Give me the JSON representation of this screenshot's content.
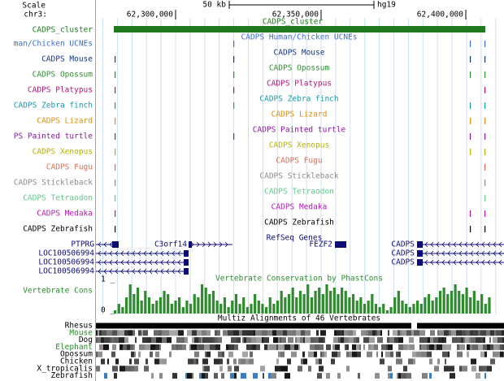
{
  "header": {
    "scale": "Scale",
    "chrom": "chr3:",
    "scale_bar": "50 kb",
    "assembly": "hg19",
    "positions": [
      "62,300,000",
      "62,350,000",
      "62,400,000"
    ]
  },
  "tracks": [
    {
      "label": "CADPS_cluster",
      "title": "CADPS_cluster",
      "color": "#1f7a1f"
    },
    {
      "label": "man/Chicken UCNEs",
      "title": "CADPS Human/Chicken UCNEs",
      "color": "#3d6fd0"
    },
    {
      "label": "CADPS Mouse",
      "title": "CADPS Mouse",
      "color": "#13338a"
    },
    {
      "label": "CADPS Opossum",
      "title": "CADPS Opossum",
      "color": "#2f8f2f"
    },
    {
      "label": "CADPS Platypus",
      "title": "CADPS Platypus",
      "color": "#b0177a"
    },
    {
      "label": "CADPS Zebra finch",
      "title": "CADPS Zebra finch",
      "color": "#1898ab"
    },
    {
      "label": "CADPS Lizard",
      "title": "CADPS Lizard",
      "color": "#dc8e0c"
    },
    {
      "label": "PS Painted turtle",
      "title": "CADPS Painted turtle",
      "color": "#8a16a6"
    },
    {
      "label": "CADPS Xenopus",
      "title": "CADPS Xenopus",
      "color": "#b5b000"
    },
    {
      "label": "CADPS Fugu",
      "title": "CADPS Fugu",
      "color": "#e06a50"
    },
    {
      "label": "CADPS Stickleback",
      "title": "CADPS Stickleback",
      "color": "#8a8a8a"
    },
    {
      "label": "CADPS Tetraodon",
      "title": "CADPS Tetraodon",
      "color": "#62c98a"
    },
    {
      "label": "CADPS Medaka",
      "title": "CADPS Medaka",
      "color": "#b318b3"
    },
    {
      "label": "CADPS Zebrafish",
      "title": "CADPS Zebrafish",
      "color": "#000000"
    }
  ],
  "refseq": {
    "title": "RefSeq Genes",
    "color": "#0c0c78",
    "genes": [
      "PTPRG",
      "C3orf14",
      "FEZF2",
      "CADPS",
      "LOC100506994",
      "CADPS",
      "LOC100506994",
      "CADPS",
      "LOC100506994"
    ]
  },
  "conservation": {
    "title": "Vertebrate Conservation by PhastCons",
    "label": "Vertebrate Cons",
    "max_label": "1 _",
    "min_label": "0 _",
    "color": "#2e8b2e",
    "values": [
      0.1,
      0.3,
      0.2,
      0.5,
      0.9,
      0.6,
      0.8,
      0.4,
      0.7,
      0.5,
      0.3,
      0.4,
      0.5,
      0.7,
      0.6,
      0.3,
      0.4,
      0.5,
      0.2,
      0.4,
      0.3,
      0.6,
      0.5,
      0.9,
      0.8,
      0.6,
      0.7,
      0.4,
      0.3,
      0.5,
      0.2,
      0.4,
      0.6,
      0.3,
      0.5,
      0.2,
      0.3,
      0.6,
      0.4,
      0.3,
      0.2,
      0.5,
      0.3,
      0.4,
      0.7,
      0.5,
      0.6,
      0.8,
      0.5,
      0.7,
      0.6,
      0.9,
      0.5,
      0.7,
      0.8,
      0.6,
      0.9,
      0.7,
      0.8,
      0.6,
      0.8,
      0.7,
      0.5,
      0.6,
      0.4,
      0.5,
      0.3,
      0.4,
      0.6,
      0.3,
      0.2,
      0.3,
      0.1,
      0.2,
      0.5,
      0.7,
      0.4,
      0.3,
      0.2,
      0.3,
      0.4,
      0.3,
      0.5,
      0.6,
      0.4,
      0.5,
      0.7,
      0.8,
      0.6,
      0.7,
      0.9,
      0.7,
      0.6,
      0.8,
      0.5,
      0.7,
      0.4,
      0.6,
      0.3,
      0.5
    ]
  },
  "multiz": {
    "title": "Multiz Alignments of 46 Vertebrates",
    "species": [
      "Rhesus",
      "Mouse",
      "Dog",
      "Elephant",
      "Opossum",
      "Chicken",
      "X_tropicalis",
      "Zebrafish"
    ],
    "colors": [
      "#000000",
      "#2e8b2e",
      "#000000",
      "#2e8b2e",
      "#000000",
      "#000000",
      "#000000",
      "#000000"
    ]
  }
}
